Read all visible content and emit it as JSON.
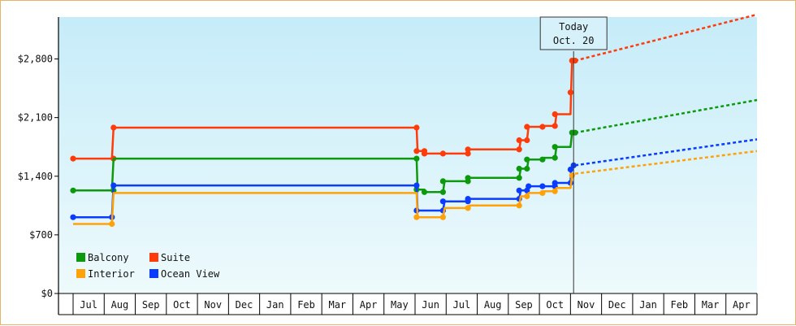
{
  "chart_data": {
    "type": "line",
    "currency_format": "$",
    "yticks": [
      0,
      700,
      1400,
      2100,
      2800
    ],
    "ylim": [
      0,
      3300
    ],
    "months": [
      "Jul",
      "Aug",
      "Sep",
      "Oct",
      "Nov",
      "Dec",
      "Jan",
      "Feb",
      "Mar",
      "Apr",
      "May",
      "Jun",
      "Jul",
      "Aug",
      "Sep",
      "Oct",
      "Nov",
      "Dec",
      "Jan",
      "Feb",
      "Mar",
      "Apr"
    ],
    "today_label": [
      "Today",
      "Oct. 20"
    ],
    "today_month_pos": 16.1,
    "legend": [
      {
        "name": "Balcony",
        "color": "#0c9a0c"
      },
      {
        "name": "Suite",
        "color": "#ff3b0a"
      },
      {
        "name": "Interior",
        "color": "#ffa20a"
      },
      {
        "name": "Ocean View",
        "color": "#0a3cff"
      }
    ],
    "series": [
      {
        "name": "Suite",
        "color": "#ff3b0a",
        "points": [
          [
            0,
            1610
          ],
          [
            1.25,
            1610
          ],
          [
            1.3,
            1980
          ],
          [
            11.05,
            1980
          ],
          [
            11.08,
            1700
          ],
          [
            11.3,
            1700
          ],
          [
            11.35,
            1670
          ],
          [
            11.9,
            1670
          ],
          [
            12.0,
            1670
          ],
          [
            12.7,
            1670
          ],
          [
            12.75,
            1720
          ],
          [
            14.35,
            1720
          ],
          [
            14.4,
            1830
          ],
          [
            14.6,
            1830
          ],
          [
            14.65,
            1990
          ],
          [
            15.1,
            1990
          ],
          [
            15.15,
            2000
          ],
          [
            15.5,
            2000
          ],
          [
            15.55,
            2140
          ],
          [
            16.0,
            2140
          ],
          [
            16.02,
            2410
          ],
          [
            16.05,
            2780
          ],
          [
            16.15,
            2780
          ]
        ],
        "dots": [
          [
            0,
            1610
          ],
          [
            1.3,
            1610
          ],
          [
            1.3,
            1980
          ],
          [
            11.05,
            1980
          ],
          [
            11.05,
            1700
          ],
          [
            11.3,
            1700
          ],
          [
            11.3,
            1670
          ],
          [
            11.9,
            1670
          ],
          [
            12.7,
            1670
          ],
          [
            12.7,
            1720
          ],
          [
            14.35,
            1720
          ],
          [
            14.35,
            1830
          ],
          [
            14.6,
            1830
          ],
          [
            14.6,
            1990
          ],
          [
            15.1,
            1990
          ],
          [
            15.5,
            2000
          ],
          [
            15.5,
            2140
          ],
          [
            16.0,
            2400
          ],
          [
            16.05,
            2780
          ],
          [
            16.15,
            2780
          ]
        ],
        "projection": [
          [
            16.15,
            2780
          ],
          [
            22.0,
            3330
          ]
        ]
      },
      {
        "name": "Balcony",
        "color": "#0c9a0c",
        "points": [
          [
            0,
            1230
          ],
          [
            1.25,
            1230
          ],
          [
            1.3,
            1610
          ],
          [
            11.05,
            1610
          ],
          [
            11.08,
            1240
          ],
          [
            11.3,
            1240
          ],
          [
            11.35,
            1210
          ],
          [
            11.9,
            1210
          ],
          [
            11.95,
            1340
          ],
          [
            12.7,
            1340
          ],
          [
            12.75,
            1380
          ],
          [
            14.35,
            1380
          ],
          [
            14.4,
            1490
          ],
          [
            14.6,
            1490
          ],
          [
            14.65,
            1600
          ],
          [
            15.1,
            1600
          ],
          [
            15.15,
            1620
          ],
          [
            15.5,
            1620
          ],
          [
            15.55,
            1750
          ],
          [
            16.0,
            1750
          ],
          [
            16.05,
            1920
          ],
          [
            16.15,
            1920
          ]
        ],
        "dots": [
          [
            0,
            1230
          ],
          [
            1.3,
            1230
          ],
          [
            11.05,
            1610
          ],
          [
            11.05,
            1240
          ],
          [
            11.3,
            1210
          ],
          [
            11.9,
            1210
          ],
          [
            11.9,
            1340
          ],
          [
            12.7,
            1340
          ],
          [
            12.7,
            1380
          ],
          [
            14.35,
            1380
          ],
          [
            14.35,
            1490
          ],
          [
            14.6,
            1490
          ],
          [
            14.6,
            1600
          ],
          [
            15.1,
            1600
          ],
          [
            15.5,
            1620
          ],
          [
            15.5,
            1750
          ],
          [
            16.05,
            1920
          ],
          [
            16.15,
            1920
          ]
        ],
        "projection": [
          [
            16.15,
            1920
          ],
          [
            22.0,
            2310
          ]
        ]
      },
      {
        "name": "Ocean View",
        "color": "#0a3cff",
        "points": [
          [
            0,
            910
          ],
          [
            1.25,
            910
          ],
          [
            1.3,
            1290
          ],
          [
            11.05,
            1290
          ],
          [
            11.08,
            990
          ],
          [
            11.9,
            990
          ],
          [
            11.95,
            1100
          ],
          [
            12.7,
            1100
          ],
          [
            12.75,
            1130
          ],
          [
            14.35,
            1130
          ],
          [
            14.4,
            1230
          ],
          [
            14.6,
            1230
          ],
          [
            14.65,
            1280
          ],
          [
            15.5,
            1280
          ],
          [
            15.55,
            1320
          ],
          [
            16.0,
            1320
          ],
          [
            16.02,
            1500
          ],
          [
            16.15,
            1530
          ]
        ],
        "dots": [
          [
            0,
            910
          ],
          [
            1.25,
            910
          ],
          [
            1.3,
            1290
          ],
          [
            11.05,
            1290
          ],
          [
            11.05,
            990
          ],
          [
            11.9,
            990
          ],
          [
            11.9,
            1100
          ],
          [
            12.7,
            1100
          ],
          [
            12.7,
            1130
          ],
          [
            14.35,
            1130
          ],
          [
            14.35,
            1230
          ],
          [
            14.6,
            1230
          ],
          [
            14.65,
            1280
          ],
          [
            15.1,
            1280
          ],
          [
            15.5,
            1280
          ],
          [
            15.5,
            1320
          ],
          [
            16.0,
            1320
          ],
          [
            16.0,
            1480
          ],
          [
            16.1,
            1530
          ]
        ],
        "projection": [
          [
            16.15,
            1530
          ],
          [
            22.0,
            1840
          ]
        ]
      },
      {
        "name": "Interior",
        "color": "#ffa20a",
        "points": [
          [
            0,
            830
          ],
          [
            1.25,
            830
          ],
          [
            1.3,
            1200
          ],
          [
            11.05,
            1200
          ],
          [
            11.08,
            910
          ],
          [
            11.9,
            910
          ],
          [
            11.95,
            1020
          ],
          [
            12.7,
            1020
          ],
          [
            12.75,
            1050
          ],
          [
            14.35,
            1050
          ],
          [
            14.4,
            1160
          ],
          [
            14.6,
            1160
          ],
          [
            14.65,
            1200
          ],
          [
            15.1,
            1200
          ],
          [
            15.15,
            1220
          ],
          [
            15.5,
            1220
          ],
          [
            15.55,
            1260
          ],
          [
            16.0,
            1260
          ],
          [
            16.05,
            1410
          ]
        ],
        "dots": [
          [
            1.25,
            830
          ],
          [
            11.05,
            910
          ],
          [
            11.9,
            910
          ],
          [
            12.7,
            1020
          ],
          [
            14.35,
            1050
          ],
          [
            14.6,
            1160
          ],
          [
            15.1,
            1200
          ],
          [
            15.5,
            1220
          ],
          [
            16.05,
            1410
          ]
        ],
        "projection": [
          [
            16.15,
            1430
          ],
          [
            22.0,
            1700
          ]
        ]
      }
    ]
  }
}
